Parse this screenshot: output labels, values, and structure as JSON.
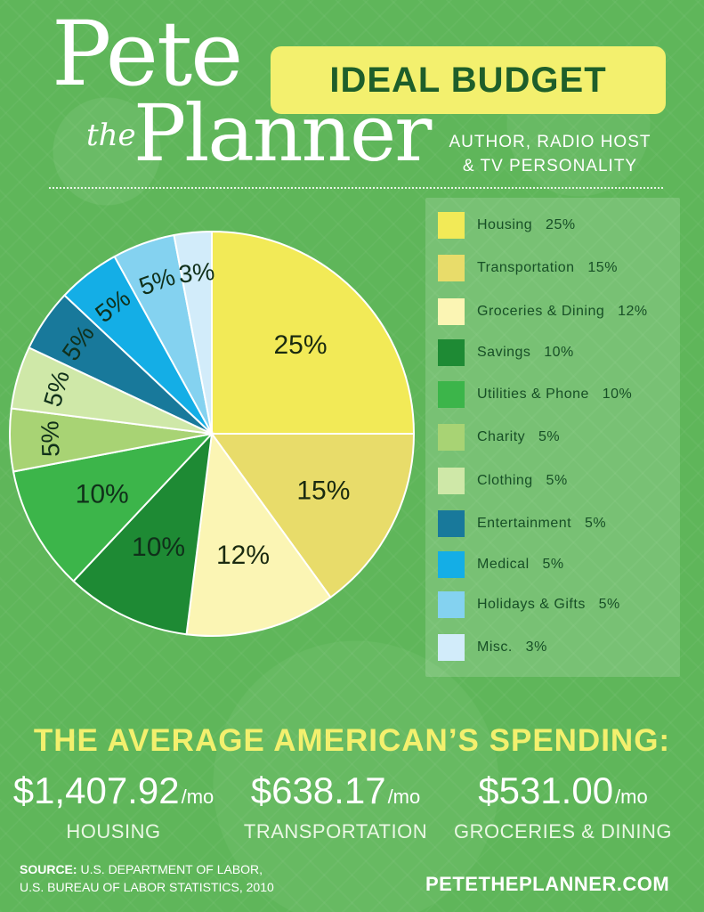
{
  "brand": {
    "line1": "Pete",
    "the": "the",
    "line2": "Planner"
  },
  "badge": "IDEAL BUDGET",
  "subtitle": {
    "line1": "AUTHOR, RADIO HOST",
    "line2": "& TV PERSONALITY"
  },
  "chart_data": {
    "type": "pie",
    "title": "IDEAL BUDGET",
    "slices": [
      {
        "label": "Housing",
        "value": 25,
        "color": "#f2ea57",
        "text": "#1a2a10"
      },
      {
        "label": "Transportation",
        "value": 15,
        "color": "#e8dc6a",
        "text": "#1a2a10"
      },
      {
        "label": "Groceries & Dining",
        "value": 12,
        "color": "#fbf5b4",
        "text": "#1a2a10"
      },
      {
        "label": "Savings",
        "value": 10,
        "color": "#1e8a34",
        "text": "#10301a"
      },
      {
        "label": "Utilities & Phone",
        "value": 10,
        "color": "#3cb54a",
        "text": "#10301a"
      },
      {
        "label": "Charity",
        "value": 5,
        "color": "#a8d374",
        "text": "#10301a"
      },
      {
        "label": "Clothing",
        "value": 5,
        "color": "#cfe8a8",
        "text": "#10301a"
      },
      {
        "label": "Entertainment",
        "value": 5,
        "color": "#18799b",
        "text": "#10301a"
      },
      {
        "label": "Medical",
        "value": 5,
        "color": "#14aee6",
        "text": "#10301a"
      },
      {
        "label": "Holidays & Gifts",
        "value": 5,
        "color": "#84d2f0",
        "text": "#10301a"
      },
      {
        "label": "Misc.",
        "value": 3,
        "color": "#d2ecfa",
        "text": "#10301a"
      }
    ]
  },
  "legend": [
    {
      "text": "Housing   25%",
      "color": "#f2ea57"
    },
    {
      "text": "Transportation   15%",
      "color": "#e8dc6a"
    },
    {
      "text": "Groceries & Dining   12%",
      "color": "#fbf5b4"
    },
    {
      "text": "Savings   10%",
      "color": "#1e8a34"
    },
    {
      "text": "Utilities & Phone   10%",
      "color": "#3cb54a"
    },
    {
      "text": "Charity   5%",
      "color": "#a8d374"
    },
    {
      "text": "Clothing   5%",
      "color": "#cfe8a8"
    },
    {
      "text": "Entertainment   5%",
      "color": "#18799b"
    },
    {
      "text": "Medical   5%",
      "color": "#14aee6"
    },
    {
      "text": "Holidays & Gifts   5%",
      "color": "#84d2f0"
    },
    {
      "text": "Misc.   3%",
      "color": "#d2ecfa"
    }
  ],
  "spending": {
    "heading": "THE AVERAGE AMERICAN’S SPENDING:",
    "unit": "/mo",
    "items": [
      {
        "amount": "$1,407.92",
        "label": "HOUSING"
      },
      {
        "amount": "$638.17",
        "label": "TRANSPORTATION"
      },
      {
        "amount": "$531.00",
        "label": "GROCERIES & DINING"
      }
    ]
  },
  "source": {
    "label": "SOURCE:",
    "line1": "U.S. DEPARTMENT OF LABOR,",
    "line2": "U.S. BUREAU OF LABOR STATISTICS, 2010"
  },
  "website": "PETETHEPLANNER.COM"
}
